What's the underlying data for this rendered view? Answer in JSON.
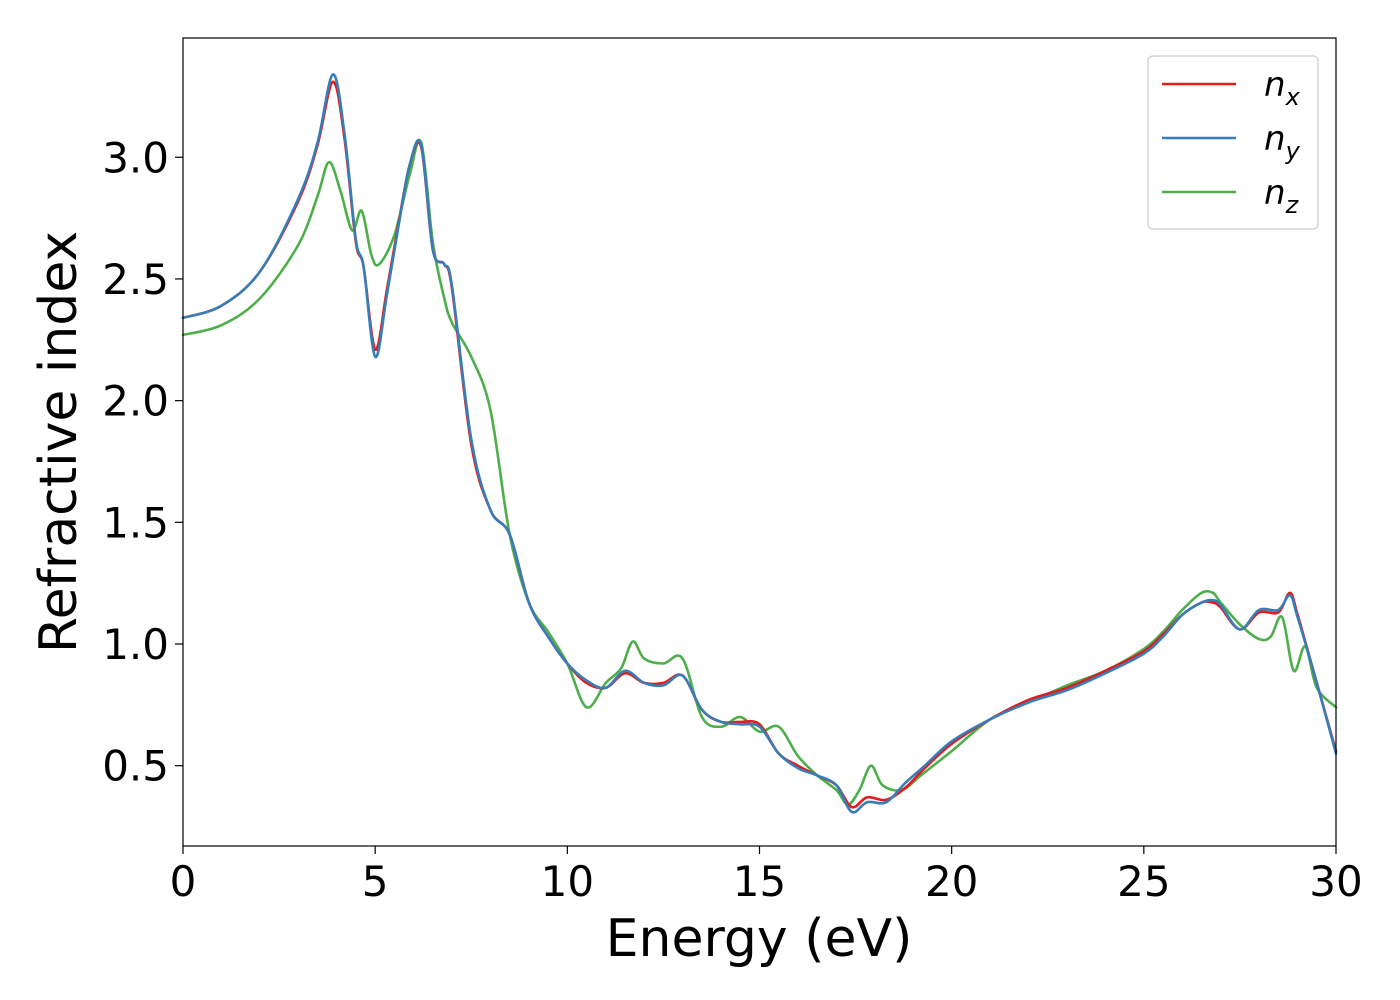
{
  "chart_data": {
    "type": "line",
    "title": "",
    "xlabel": "Energy (eV)",
    "ylabel": "Refractive index",
    "xlim": [
      0,
      30
    ],
    "ylim": [
      0.17,
      3.49
    ],
    "xticks": [
      "0",
      "5",
      "10",
      "15",
      "20",
      "25",
      "30"
    ],
    "yticks": [
      "0.5",
      "1.0",
      "1.5",
      "2.0",
      "2.5",
      "3.0"
    ],
    "grid": false,
    "legend": {
      "position": "top-right"
    },
    "series": [
      {
        "name": "n",
        "subscript": "x",
        "color": "#e41a1c",
        "x": [
          0,
          1,
          2,
          3,
          3.5,
          3.9,
          4.2,
          4.5,
          4.7,
          5.0,
          5.3,
          5.6,
          5.9,
          6.2,
          6.5,
          6.8,
          7.0,
          7.5,
          8.0,
          8.5,
          9.0,
          9.5,
          10.0,
          10.5,
          11.0,
          11.5,
          12.0,
          12.5,
          13.0,
          13.5,
          14.0,
          14.5,
          15.0,
          15.5,
          16.0,
          16.5,
          17.0,
          17.4,
          17.8,
          18.3,
          18.8,
          19.3,
          20.0,
          21.0,
          22.0,
          23.0,
          24.0,
          25.0,
          25.5,
          26.0,
          26.5,
          26.8,
          27.0,
          27.5,
          28.0,
          28.5,
          28.8,
          29.0,
          29.5,
          30.0
        ],
        "y": [
          2.34,
          2.39,
          2.53,
          2.82,
          3.05,
          3.31,
          3.08,
          2.65,
          2.55,
          2.21,
          2.45,
          2.72,
          2.97,
          3.04,
          2.62,
          2.56,
          2.46,
          1.82,
          1.55,
          1.45,
          1.17,
          1.03,
          0.92,
          0.84,
          0.82,
          0.88,
          0.84,
          0.84,
          0.87,
          0.73,
          0.68,
          0.68,
          0.67,
          0.55,
          0.5,
          0.46,
          0.42,
          0.33,
          0.37,
          0.36,
          0.41,
          0.49,
          0.59,
          0.69,
          0.77,
          0.82,
          0.89,
          0.97,
          1.04,
          1.12,
          1.17,
          1.17,
          1.15,
          1.06,
          1.13,
          1.13,
          1.21,
          1.12,
          0.84,
          0.56
        ]
      },
      {
        "name": "n",
        "subscript": "y",
        "color": "#377eb8",
        "x": [
          0,
          1,
          2,
          3,
          3.5,
          3.9,
          4.2,
          4.5,
          4.7,
          5.0,
          5.3,
          5.6,
          5.9,
          6.2,
          6.5,
          6.8,
          7.0,
          7.5,
          8.0,
          8.5,
          9.0,
          9.5,
          10.0,
          10.5,
          11.0,
          11.5,
          12.0,
          12.5,
          13.0,
          13.5,
          14.0,
          14.5,
          15.0,
          15.5,
          16.0,
          16.5,
          17.0,
          17.4,
          17.8,
          18.3,
          18.8,
          19.3,
          20.0,
          21.0,
          22.0,
          23.0,
          24.0,
          25.0,
          25.5,
          26.0,
          26.5,
          26.8,
          27.0,
          27.5,
          28.0,
          28.5,
          28.8,
          29.0,
          29.5,
          30.0
        ],
        "y": [
          2.34,
          2.39,
          2.53,
          2.83,
          3.06,
          3.34,
          3.1,
          2.66,
          2.55,
          2.18,
          2.43,
          2.71,
          2.97,
          3.05,
          2.62,
          2.56,
          2.47,
          1.84,
          1.55,
          1.45,
          1.17,
          1.03,
          0.92,
          0.85,
          0.82,
          0.89,
          0.84,
          0.83,
          0.87,
          0.73,
          0.68,
          0.67,
          0.66,
          0.55,
          0.49,
          0.46,
          0.42,
          0.31,
          0.35,
          0.35,
          0.43,
          0.5,
          0.6,
          0.69,
          0.76,
          0.81,
          0.88,
          0.96,
          1.03,
          1.12,
          1.17,
          1.18,
          1.16,
          1.06,
          1.14,
          1.14,
          1.2,
          1.11,
          0.84,
          0.55
        ]
      },
      {
        "name": "n",
        "subscript": "z",
        "color": "#4daf4a",
        "x": [
          0,
          1,
          2,
          3,
          3.5,
          3.8,
          4.1,
          4.4,
          4.65,
          4.9,
          5.1,
          5.5,
          5.9,
          6.2,
          6.5,
          6.8,
          7.0,
          7.5,
          8.0,
          8.5,
          9.0,
          9.5,
          10.0,
          10.5,
          11.0,
          11.4,
          11.7,
          12.0,
          12.5,
          13.0,
          13.5,
          14.0,
          14.5,
          15.0,
          15.5,
          16.0,
          16.5,
          17.0,
          17.3,
          17.6,
          17.9,
          18.2,
          18.7,
          19.2,
          20.0,
          21.0,
          22.0,
          23.0,
          24.0,
          25.0,
          25.5,
          26.0,
          26.5,
          26.8,
          27.0,
          27.5,
          28.0,
          28.3,
          28.6,
          28.9,
          29.2,
          29.5,
          30.0
        ],
        "y": [
          2.27,
          2.31,
          2.42,
          2.64,
          2.84,
          2.98,
          2.86,
          2.7,
          2.78,
          2.6,
          2.56,
          2.68,
          2.93,
          3.06,
          2.65,
          2.42,
          2.32,
          2.18,
          1.96,
          1.45,
          1.17,
          1.05,
          0.92,
          0.74,
          0.84,
          0.9,
          1.01,
          0.94,
          0.92,
          0.94,
          0.7,
          0.66,
          0.7,
          0.64,
          0.66,
          0.54,
          0.46,
          0.4,
          0.34,
          0.4,
          0.5,
          0.42,
          0.4,
          0.46,
          0.56,
          0.69,
          0.76,
          0.83,
          0.89,
          0.98,
          1.05,
          1.14,
          1.21,
          1.21,
          1.17,
          1.08,
          1.02,
          1.03,
          1.11,
          0.89,
          0.99,
          0.82,
          0.74
        ]
      }
    ]
  }
}
